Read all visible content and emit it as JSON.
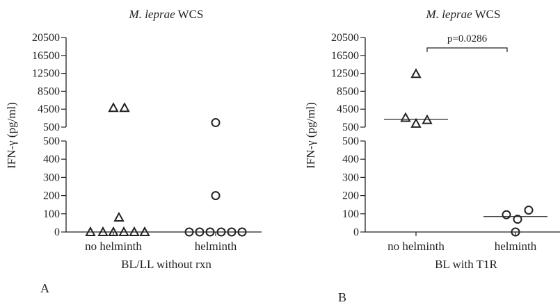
{
  "panels": {
    "a": {
      "letter": "A"
    },
    "b": {
      "letter": "B"
    }
  },
  "chart_data": [
    {
      "type": "scatter",
      "panel": "A",
      "title_italic": "M. leprae",
      "title_rest": "WCS",
      "ylabel": "IFN-γ (pg/ml)",
      "xlabel": "BL/LL without rxn",
      "categories": [
        "no helminth",
        "helminth"
      ],
      "y_axis": {
        "broken": true,
        "lower_segment": {
          "range": [
            0,
            500
          ],
          "ticks": [
            "0",
            "100",
            "200",
            "300",
            "400",
            "500"
          ]
        },
        "upper_segment": {
          "range": [
            500,
            20500
          ],
          "ticks": [
            "500",
            "4500",
            "8500",
            "12500",
            "16500",
            "20500"
          ]
        }
      },
      "series": [
        {
          "category": "no helminth",
          "marker": "triangle",
          "values": [
            0,
            0,
            0,
            0,
            0,
            0,
            80,
            4800,
            4800
          ]
        },
        {
          "category": "helminth",
          "marker": "circle",
          "values": [
            0,
            0,
            0,
            0,
            0,
            0,
            200,
            1500
          ]
        }
      ],
      "medians": [],
      "annotations": []
    },
    {
      "type": "scatter",
      "panel": "B",
      "title_italic": "M. leprae",
      "title_rest": "WCS",
      "ylabel": "IFN-γ (pg/ml)",
      "xlabel": "BL with T1R",
      "categories": [
        "no helminth",
        "helminth"
      ],
      "y_axis": {
        "broken": true,
        "lower_segment": {
          "range": [
            0,
            500
          ],
          "ticks": [
            "0",
            "100",
            "200",
            "300",
            "400",
            "500"
          ]
        },
        "upper_segment": {
          "range": [
            500,
            20500
          ],
          "ticks": [
            "500",
            "4500",
            "8500",
            "12500",
            "16500",
            "20500"
          ]
        }
      },
      "series": [
        {
          "category": "no helminth",
          "marker": "triangle",
          "values": [
            2600,
            1300,
            2100,
            12400
          ]
        },
        {
          "category": "helminth",
          "marker": "circle",
          "values": [
            95,
            70,
            120,
            0
          ]
        }
      ],
      "medians": [
        {
          "category": "no helminth",
          "value": 2250
        },
        {
          "category": "helminth",
          "value": 85
        }
      ],
      "annotations": [
        {
          "type": "bracket",
          "from": "no helminth",
          "to": "helminth",
          "text": "p=0.0286"
        }
      ]
    }
  ]
}
